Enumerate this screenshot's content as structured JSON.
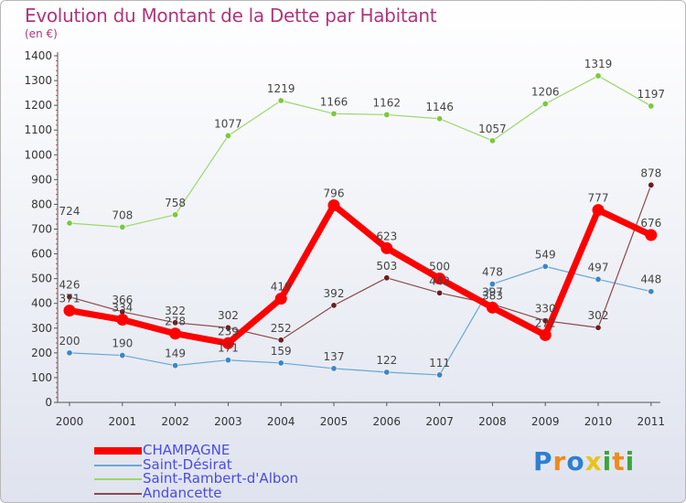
{
  "chart_data": {
    "type": "line",
    "title": "Evolution du Montant de la Dette par Habitant",
    "subtitle": "(en €)",
    "x": [
      "2000",
      "2001",
      "2002",
      "2003",
      "2004",
      "2005",
      "2006",
      "2007",
      "2008",
      "2009",
      "2010",
      "2011"
    ],
    "ylim": [
      0,
      1400
    ],
    "yticks": [
      "0",
      "100",
      "200",
      "300",
      "400",
      "500",
      "600",
      "700",
      "800",
      "900",
      "1000",
      "1100",
      "1200",
      "1300",
      "1400"
    ],
    "grid": false,
    "legend_position": "bottom-left",
    "series": [
      {
        "name": "CHAMPAGNE",
        "color": "#ff0000",
        "values": [
          371,
          334,
          278,
          239,
          419,
          796,
          623,
          500,
          383,
          272,
          777,
          676
        ],
        "labels": [
          "371",
          "334",
          "278",
          "239",
          "419",
          "796",
          "623",
          "500",
          "383",
          "272",
          "777",
          "676"
        ]
      },
      {
        "name": "Saint-Désirat",
        "color": "#5b9bd5",
        "values": [
          200,
          190,
          149,
          171,
          159,
          137,
          122,
          111,
          478,
          549,
          497,
          448
        ],
        "labels": [
          "200",
          "190",
          "149",
          "171",
          "159",
          "137",
          "122",
          "111",
          "478",
          "549",
          "497",
          "448"
        ]
      },
      {
        "name": "Saint-Rambert-d'Albon",
        "color": "#8fd45a",
        "values": [
          724,
          708,
          758,
          1077,
          1219,
          1166,
          1162,
          1146,
          1057,
          1206,
          1319,
          1197
        ],
        "labels": [
          "724",
          "708",
          "758",
          "1077",
          "1219",
          "1166",
          "1162",
          "1146",
          "1057",
          "1206",
          "1319",
          "1197"
        ]
      },
      {
        "name": "Andancette",
        "color": "#7a2a2a",
        "values": [
          426,
          366,
          322,
          302,
          252,
          392,
          503,
          442,
          397,
          330,
          302,
          878
        ],
        "labels": [
          "426",
          "366",
          "322",
          "302",
          "252",
          "392",
          "503",
          "442",
          "397",
          "330",
          "302",
          "878"
        ]
      }
    ]
  },
  "logo": {
    "letters": [
      "P",
      "r",
      "o",
      "x",
      "i",
      "t",
      "i"
    ],
    "colors": [
      "#2f7fd0",
      "#f08a1c",
      "#2f7fd0",
      "#e8c31a",
      "#3aa63a",
      "#f08a1c",
      "#3aa63a"
    ]
  }
}
